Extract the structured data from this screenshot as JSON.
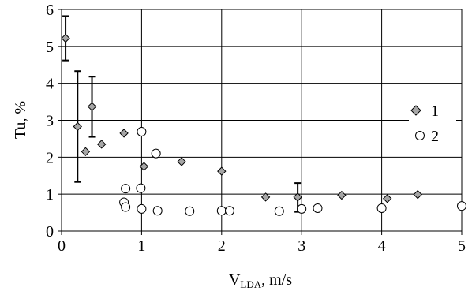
{
  "chart_data": {
    "type": "scatter",
    "xlabel": {
      "main": "V",
      "sub": "LDA",
      "suffix": ", m/s"
    },
    "ylabel": "Tu, %",
    "xlim": [
      0,
      5
    ],
    "ylim": [
      0,
      6
    ],
    "x_ticks": [
      "0",
      "1",
      "2",
      "3",
      "4",
      "5"
    ],
    "y_ticks": [
      "0",
      "1",
      "2",
      "3",
      "4",
      "5",
      "6"
    ],
    "grid": "horizontal and vertical major lines",
    "legend_position": "right",
    "series": [
      {
        "name": "1",
        "marker": "diamond",
        "color": "#a6a6a6",
        "points": [
          {
            "x": 0.05,
            "y": 5.22
          },
          {
            "x": 0.2,
            "y": 2.83
          },
          {
            "x": 0.3,
            "y": 2.15
          },
          {
            "x": 0.38,
            "y": 3.37
          },
          {
            "x": 0.5,
            "y": 2.35
          },
          {
            "x": 0.78,
            "y": 2.65
          },
          {
            "x": 1.03,
            "y": 1.75
          },
          {
            "x": 1.5,
            "y": 1.88
          },
          {
            "x": 2.0,
            "y": 1.62
          },
          {
            "x": 2.55,
            "y": 0.92
          },
          {
            "x": 2.95,
            "y": 0.92
          },
          {
            "x": 3.5,
            "y": 0.97
          },
          {
            "x": 4.07,
            "y": 0.88
          },
          {
            "x": 4.45,
            "y": 0.99
          }
        ],
        "error_bars": [
          {
            "x": 0.05,
            "low": 4.62,
            "high": 5.82
          },
          {
            "x": 0.2,
            "low": 1.33,
            "high": 4.33
          },
          {
            "x": 0.38,
            "low": 2.55,
            "high": 4.18
          },
          {
            "x": 2.95,
            "low": 0.52,
            "high": 1.3
          }
        ]
      },
      {
        "name": "2",
        "marker": "circle",
        "color": "#000000",
        "points": [
          {
            "x": 0.78,
            "y": 0.78
          },
          {
            "x": 0.8,
            "y": 0.65
          },
          {
            "x": 0.8,
            "y": 1.15
          },
          {
            "x": 1.0,
            "y": 2.69
          },
          {
            "x": 0.99,
            "y": 1.16
          },
          {
            "x": 1.0,
            "y": 0.6
          },
          {
            "x": 1.18,
            "y": 2.1
          },
          {
            "x": 1.2,
            "y": 0.55
          },
          {
            "x": 1.6,
            "y": 0.54
          },
          {
            "x": 2.0,
            "y": 0.55
          },
          {
            "x": 2.1,
            "y": 0.55
          },
          {
            "x": 2.72,
            "y": 0.54
          },
          {
            "x": 3.0,
            "y": 0.6
          },
          {
            "x": 3.2,
            "y": 0.62
          },
          {
            "x": 4.0,
            "y": 0.62
          },
          {
            "x": 5.0,
            "y": 0.68
          }
        ]
      }
    ]
  }
}
